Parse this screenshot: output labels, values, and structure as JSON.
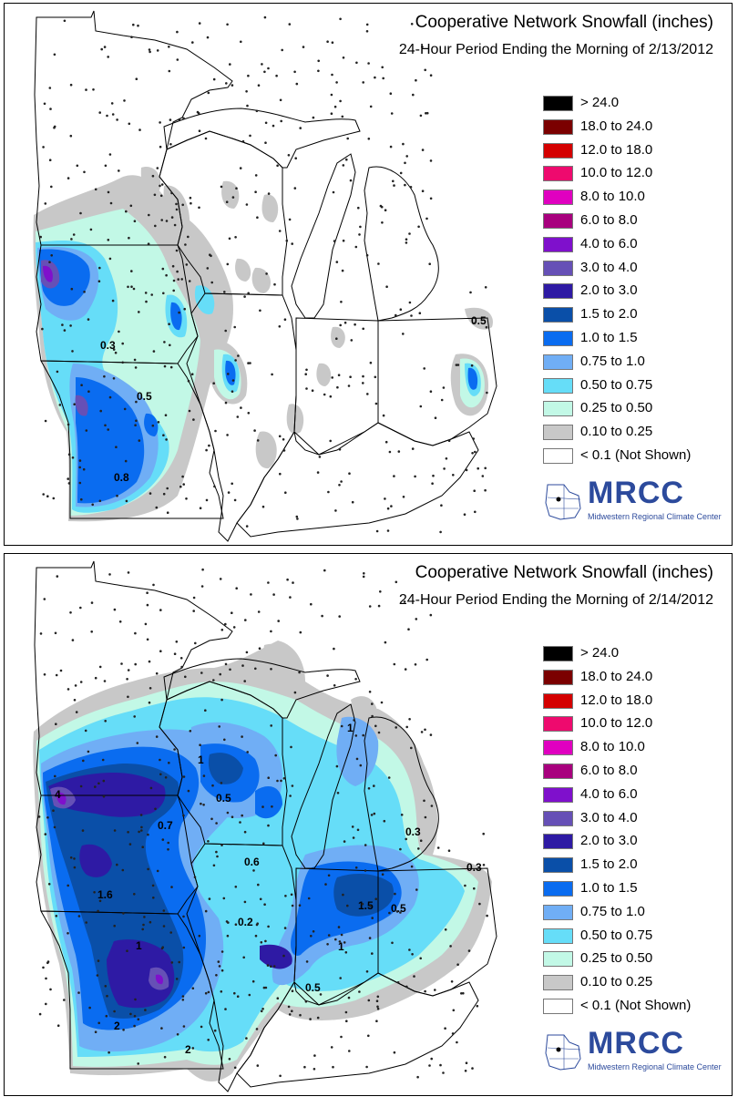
{
  "legend_items": [
    {
      "label": "> 24.0",
      "color": "#000000"
    },
    {
      "label": "18.0 to 24.0",
      "color": "#7b0000"
    },
    {
      "label": "12.0 to 18.0",
      "color": "#d40000"
    },
    {
      "label": "10.0 to 12.0",
      "color": "#ee0a6e"
    },
    {
      "label": "8.0 to 10.0",
      "color": "#e000c0"
    },
    {
      "label": "6.0 to 8.0",
      "color": "#a8007e"
    },
    {
      "label": "4.0 to 6.0",
      "color": "#7f10cc"
    },
    {
      "label": "3.0 to 4.0",
      "color": "#6650b6"
    },
    {
      "label": "2.0 to 3.0",
      "color": "#2e1aa4"
    },
    {
      "label": "1.5 to 2.0",
      "color": "#0a4fa8"
    },
    {
      "label": "1.0 to 1.5",
      "color": "#0a6cf0"
    },
    {
      "label": "0.75 to 1.0",
      "color": "#70aef5"
    },
    {
      "label": "0.50 to 0.75",
      "color": "#66ddf8"
    },
    {
      "label": "0.25 to 0.50",
      "color": "#c2f8e6"
    },
    {
      "label": "0.10 to 0.25",
      "color": "#c8c8c8"
    },
    {
      "label": "< 0.1 (Not Shown)",
      "color": "#ffffff"
    }
  ],
  "logo": {
    "name": "MRCC",
    "subtitle": "Midwestern Regional Climate Center"
  },
  "panels": [
    {
      "title": "Cooperative Network Snowfall (inches)",
      "subtitle": "24-Hour Period Ending the Morning of 2/13/2012",
      "value_labels": [
        "0.3",
        "0.5",
        "0.8",
        "0.5"
      ]
    },
    {
      "title": "Cooperative Network Snowfall (inches)",
      "subtitle": "24-Hour Period Ending the Morning of 2/14/2012",
      "value_labels": [
        "4",
        "1",
        "0.5",
        "0.7",
        "0.6",
        "1.6",
        "0.2",
        "1",
        "2",
        "2",
        "1.5",
        "0.5",
        "1",
        "0.5",
        "0.3",
        "0.3",
        "1"
      ]
    }
  ]
}
